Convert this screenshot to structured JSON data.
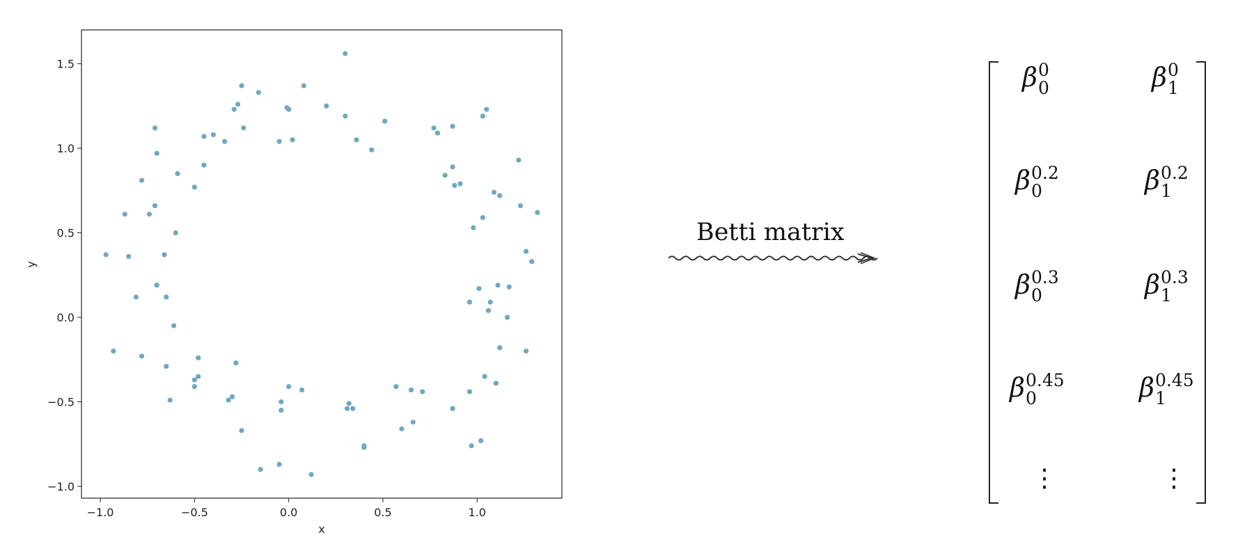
{
  "chart_data": {
    "type": "scatter",
    "xlabel": "x",
    "ylabel": "y",
    "xlim": [
      -1.1,
      1.45
    ],
    "ylim": [
      -1.07,
      1.7
    ],
    "xticks": [
      "−1.0",
      "−0.5",
      "0.0",
      "0.5",
      "1.0"
    ],
    "xtick_values": [
      -1.0,
      -0.5,
      0.0,
      0.5,
      1.0
    ],
    "yticks": [
      "−1.0",
      "−0.5",
      "0.0",
      "0.5",
      "1.0",
      "1.5"
    ],
    "ytick_values": [
      -1.0,
      -0.5,
      0.0,
      0.5,
      1.0,
      1.5
    ],
    "grid": false,
    "point_color": "#6fa8c0",
    "points": [
      [
        -0.97,
        0.37
      ],
      [
        -0.93,
        -0.2
      ],
      [
        -0.87,
        0.61
      ],
      [
        -0.85,
        0.36
      ],
      [
        -0.81,
        0.12
      ],
      [
        -0.78,
        0.81
      ],
      [
        -0.78,
        -0.23
      ],
      [
        -0.74,
        0.61
      ],
      [
        -0.71,
        1.12
      ],
      [
        -0.71,
        0.66
      ],
      [
        -0.7,
        0.97
      ],
      [
        -0.7,
        0.19
      ],
      [
        -0.66,
        0.37
      ],
      [
        -0.65,
        0.12
      ],
      [
        -0.65,
        -0.29
      ],
      [
        -0.63,
        -0.49
      ],
      [
        -0.61,
        -0.05
      ],
      [
        -0.6,
        0.5
      ],
      [
        -0.59,
        0.85
      ],
      [
        -0.5,
        0.77
      ],
      [
        -0.5,
        -0.37
      ],
      [
        -0.5,
        -0.41
      ],
      [
        -0.48,
        -0.24
      ],
      [
        -0.48,
        -0.35
      ],
      [
        -0.45,
        0.9
      ],
      [
        -0.45,
        1.07
      ],
      [
        -0.4,
        1.08
      ],
      [
        -0.34,
        1.04
      ],
      [
        -0.32,
        -0.49
      ],
      [
        -0.3,
        -0.47
      ],
      [
        -0.29,
        1.23
      ],
      [
        -0.28,
        -0.27
      ],
      [
        -0.27,
        1.26
      ],
      [
        -0.25,
        -0.67
      ],
      [
        -0.25,
        1.37
      ],
      [
        -0.24,
        1.12
      ],
      [
        -0.16,
        1.33
      ],
      [
        -0.15,
        -0.9
      ],
      [
        -0.05,
        1.04
      ],
      [
        -0.05,
        -0.87
      ],
      [
        -0.04,
        -0.55
      ],
      [
        -0.04,
        -0.5
      ],
      [
        -0.01,
        1.24
      ],
      [
        0.0,
        1.23
      ],
      [
        0.0,
        -0.41
      ],
      [
        0.02,
        1.05
      ],
      [
        0.07,
        -0.43
      ],
      [
        0.08,
        1.37
      ],
      [
        0.12,
        -0.93
      ],
      [
        0.2,
        1.25
      ],
      [
        0.3,
        1.19
      ],
      [
        0.3,
        1.56
      ],
      [
        0.31,
        -0.54
      ],
      [
        0.32,
        -0.51
      ],
      [
        0.34,
        -0.54
      ],
      [
        0.36,
        1.05
      ],
      [
        0.4,
        -0.76
      ],
      [
        0.4,
        -0.77
      ],
      [
        0.44,
        0.99
      ],
      [
        0.51,
        1.16
      ],
      [
        0.57,
        -0.41
      ],
      [
        0.6,
        -0.66
      ],
      [
        0.65,
        -0.43
      ],
      [
        0.66,
        -0.62
      ],
      [
        0.71,
        -0.44
      ],
      [
        0.77,
        1.12
      ],
      [
        0.79,
        1.09
      ],
      [
        0.83,
        0.84
      ],
      [
        0.87,
        1.13
      ],
      [
        0.87,
        0.89
      ],
      [
        0.87,
        -0.54
      ],
      [
        0.88,
        0.78
      ],
      [
        0.91,
        0.79
      ],
      [
        0.96,
        -0.44
      ],
      [
        0.96,
        0.09
      ],
      [
        0.97,
        -0.76
      ],
      [
        0.98,
        0.53
      ],
      [
        1.01,
        0.17
      ],
      [
        1.02,
        -0.73
      ],
      [
        1.03,
        0.59
      ],
      [
        1.03,
        1.19
      ],
      [
        1.04,
        -0.35
      ],
      [
        1.05,
        1.23
      ],
      [
        1.06,
        0.04
      ],
      [
        1.07,
        0.09
      ],
      [
        1.09,
        0.74
      ],
      [
        1.1,
        -0.39
      ],
      [
        1.11,
        0.19
      ],
      [
        1.12,
        0.72
      ],
      [
        1.12,
        -0.18
      ],
      [
        1.16,
        0.0
      ],
      [
        1.17,
        0.18
      ],
      [
        1.22,
        0.93
      ],
      [
        1.23,
        0.66
      ],
      [
        1.26,
        -0.2
      ],
      [
        1.26,
        0.39
      ],
      [
        1.29,
        0.33
      ],
      [
        1.32,
        0.62
      ]
    ]
  },
  "arrow": {
    "label": "Betti matrix"
  },
  "matrix": {
    "base": "β",
    "rows": [
      [
        {
          "sup": "0",
          "sub": "0"
        },
        {
          "sup": "0",
          "sub": "1"
        }
      ],
      [
        {
          "sup": "0.2",
          "sub": "0"
        },
        {
          "sup": "0.2",
          "sub": "1"
        }
      ],
      [
        {
          "sup": "0.3",
          "sub": "0"
        },
        {
          "sup": "0.3",
          "sub": "1"
        }
      ],
      [
        {
          "sup": "0.45",
          "sub": "0"
        },
        {
          "sup": "0.45",
          "sub": "1"
        }
      ]
    ],
    "ellipsis": "⋮"
  }
}
